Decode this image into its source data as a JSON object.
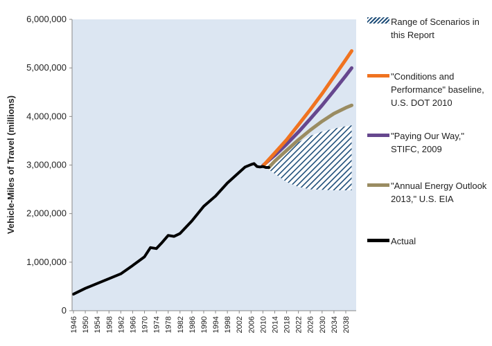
{
  "chart_data": {
    "type": "line",
    "title": "",
    "xlabel": "",
    "ylabel": "Vehicle-Miles of Travel (millions)",
    "ylim": [
      0,
      6000000
    ],
    "xlim": [
      1946,
      2040
    ],
    "yticks": [
      0,
      1000000,
      2000000,
      3000000,
      4000000,
      5000000,
      6000000
    ],
    "ytick_labels": [
      "0",
      "1,000,000",
      "2,000,000",
      "3,000,000",
      "4,000,000",
      "5,000,000",
      "6,000,000"
    ],
    "xtick_labels": [
      "1946",
      "1950",
      "1954",
      "1958",
      "1962",
      "1966",
      "1970",
      "1974",
      "1978",
      "1982",
      "1986",
      "1990",
      "1994",
      "1998",
      "2002",
      "2006",
      "2010",
      "2014",
      "2018",
      "2022",
      "2026",
      "2030",
      "2034",
      "2038"
    ],
    "grid": false,
    "legend_position": "right",
    "plot_background": "#dce6f2",
    "series": [
      {
        "name": "Actual",
        "color": "#000000",
        "x": [
          1946,
          1950,
          1954,
          1958,
          1962,
          1966,
          1970,
          1972,
          1974,
          1976,
          1978,
          1980,
          1982,
          1986,
          1990,
          1994,
          1998,
          2002,
          2004,
          2006,
          2007,
          2008,
          2009,
          2010,
          2011,
          2012
        ],
        "values": [
          340000,
          460000,
          560000,
          660000,
          760000,
          930000,
          1110000,
          1300000,
          1280000,
          1410000,
          1550000,
          1530000,
          1590000,
          1850000,
          2150000,
          2360000,
          2630000,
          2850000,
          2960000,
          3010000,
          3030000,
          2970000,
          2960000,
          2970000,
          2950000,
          2950000
        ]
      },
      {
        "name": "\"Conditions and Performance\" baseline, U.S. DOT 2010",
        "color": "#f07320",
        "x": [
          2010,
          2014,
          2018,
          2022,
          2026,
          2030,
          2034,
          2038,
          2040
        ],
        "values": [
          2980000,
          3250000,
          3520000,
          3830000,
          4140000,
          4470000,
          4820000,
          5170000,
          5350000
        ]
      },
      {
        "name": "\"Paying Our Way,\" STIFC, 2009",
        "color": "#66478e",
        "x": [
          2010,
          2014,
          2018,
          2022,
          2026,
          2030,
          2034,
          2038,
          2040
        ],
        "values": [
          2990000,
          3200000,
          3430000,
          3680000,
          3950000,
          4230000,
          4530000,
          4840000,
          5000000
        ]
      },
      {
        "name": "\"Annual Energy Outlook 2013,\" U.S. EIA",
        "color": "#9a8c62",
        "x": [
          2012,
          2014,
          2018,
          2022,
          2026,
          2030,
          2034,
          2038,
          2040
        ],
        "values": [
          2950000,
          3080000,
          3300000,
          3520000,
          3720000,
          3900000,
          4060000,
          4180000,
          4230000
        ]
      }
    ],
    "range": {
      "name": "Range of Scenarios in this Report",
      "color": "#1f4e79",
      "x": [
        2010,
        2014,
        2018,
        2022,
        2026,
        2030,
        2034,
        2038,
        2040
      ],
      "upper": [
        2990000,
        3150000,
        3330000,
        3470000,
        3600000,
        3690000,
        3750000,
        3800000,
        3820000
      ],
      "lower": [
        2990000,
        2820000,
        2650000,
        2550000,
        2500000,
        2490000,
        2480000,
        2480000,
        2480000
      ]
    }
  },
  "legend_items": [
    {
      "label": "Range of Scenarios in this Report",
      "kind": "hatch",
      "color": "#1f4e79"
    },
    {
      "label": "\"Conditions and Performance\" baseline, U.S. DOT 2010",
      "kind": "line",
      "color": "#f07320"
    },
    {
      "label": "\"Paying Our Way,\" STIFC, 2009",
      "kind": "line",
      "color": "#66478e"
    },
    {
      "label": "\"Annual Energy Outlook 2013,\" U.S. EIA",
      "kind": "line",
      "color": "#9a8c62"
    },
    {
      "label": "Actual",
      "kind": "line",
      "color": "#000000"
    }
  ]
}
